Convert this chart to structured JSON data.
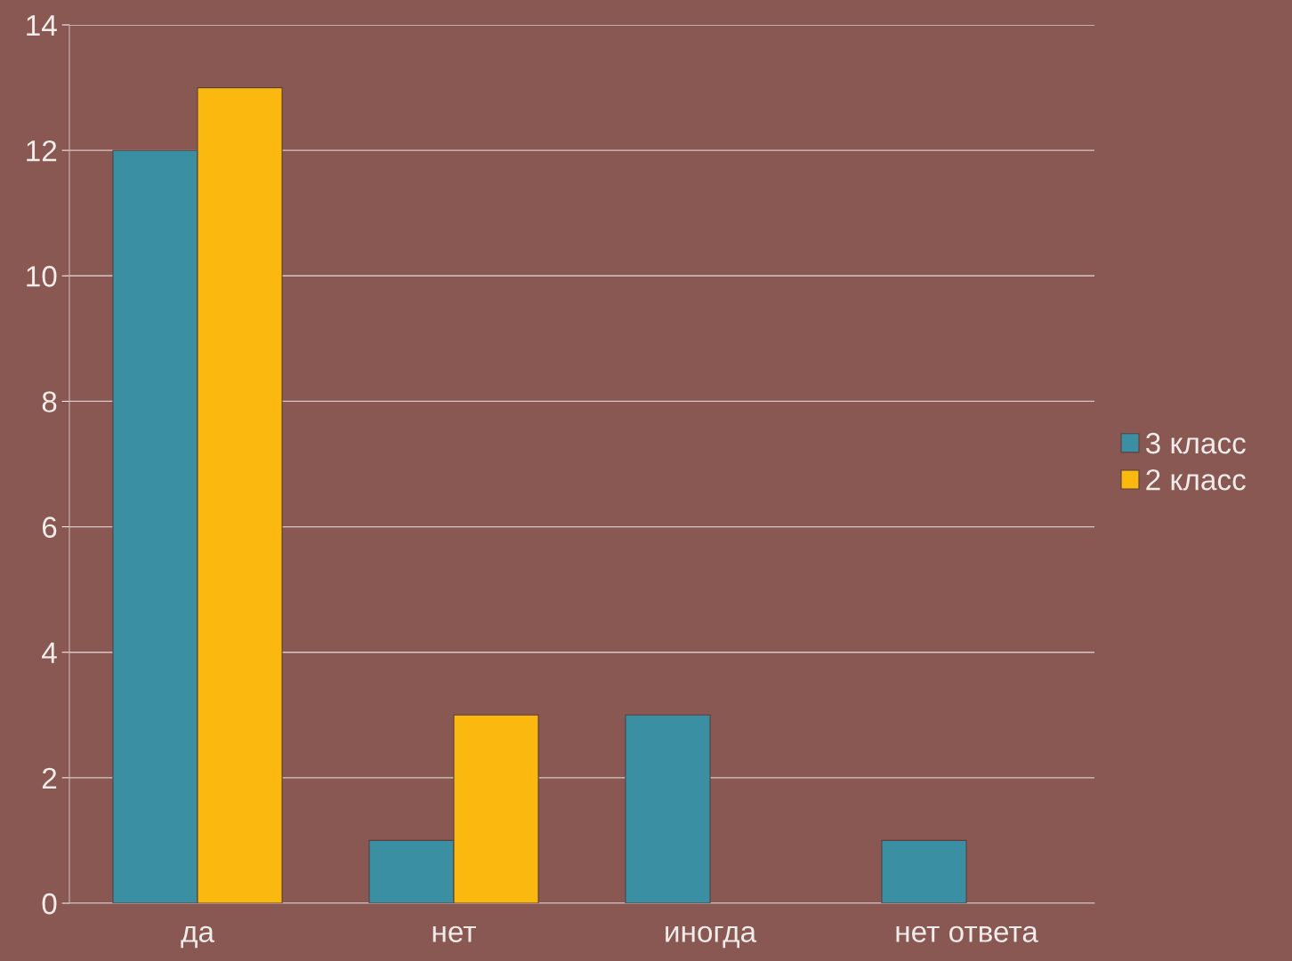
{
  "chart_data": {
    "type": "bar",
    "categories": [
      "да",
      "нет",
      "иногда",
      "нет ответа"
    ],
    "series": [
      {
        "name": "3 класс",
        "color": "#3a8fa3",
        "values": [
          12,
          1,
          3,
          1
        ]
      },
      {
        "name": "2 класс",
        "color": "#fbb80f",
        "values": [
          13,
          3,
          null,
          null
        ]
      }
    ],
    "ylim": [
      0,
      14
    ],
    "yticks": [
      0,
      2,
      4,
      6,
      8,
      10,
      12,
      14
    ],
    "grid": "y",
    "legend": "right"
  }
}
